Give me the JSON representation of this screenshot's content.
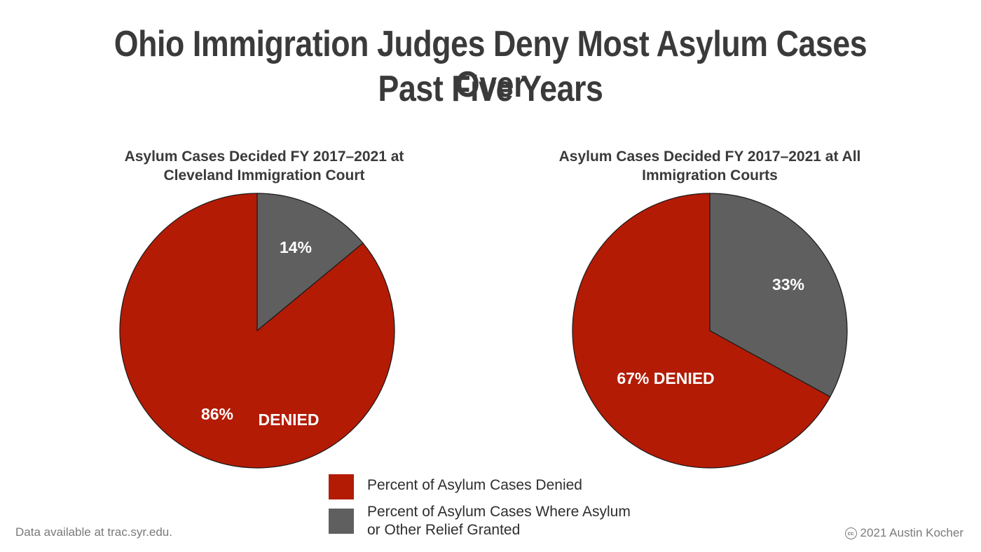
{
  "title": {
    "line1": "Ohio Immigration Judges Deny Most Asylum Cases Over",
    "line2": "Past Five Years"
  },
  "colors": {
    "denied": "#b31b05",
    "granted": "#5f5f5f",
    "text": "#3a3a3a",
    "footer": "#7a7a7a"
  },
  "chart_data": [
    {
      "type": "pie",
      "title_line1": "Asylum Cases Decided FY 2017–2021 at",
      "title_line2": "Cleveland Immigration Court",
      "slices": [
        {
          "key": "granted",
          "value": 14,
          "label": "14%"
        },
        {
          "key": "denied",
          "value": 86,
          "label": "86%",
          "label2": "DENIED"
        }
      ]
    },
    {
      "type": "pie",
      "title_line1": "Asylum Cases Decided FY 2017–2021 at All",
      "title_line2": "Immigration Courts",
      "slices": [
        {
          "key": "granted",
          "value": 33,
          "label": "33%"
        },
        {
          "key": "denied",
          "value": 67,
          "label": "67% DENIED"
        }
      ]
    }
  ],
  "legend": {
    "denied": "Percent of Asylum Cases Denied",
    "granted_line1": "Percent of Asylum Cases Where Asylum",
    "granted_line2": "or Other Relief Granted"
  },
  "footer": {
    "source": "Data available at trac.syr.edu.",
    "cc_icon": "cc-icon",
    "cc_glyph": "cc",
    "credit": "2021 Austin Kocher"
  }
}
